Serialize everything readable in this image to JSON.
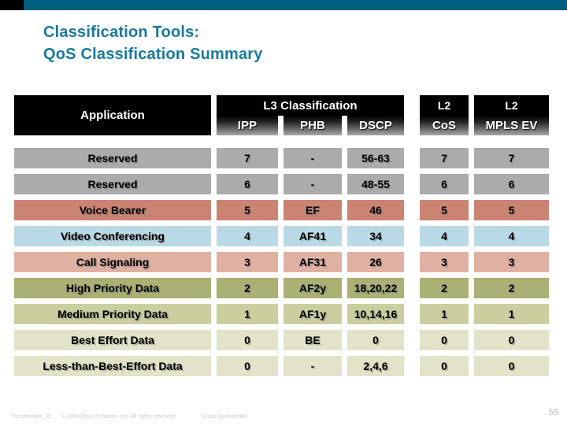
{
  "page": {
    "title_line1": "Classification Tools:",
    "title_line2": "QoS Classification Summary"
  },
  "colors": {
    "top_bar_teal": "#005f80",
    "top_bar_black_accent": "#000000",
    "title_teal": "#1878a0",
    "header_black": "#000000",
    "header_gradient_end": "#a8a8a8",
    "row_gray": "#ababab",
    "row_salmon": "#cb8472",
    "row_blue": "#bad9e6",
    "row_pink": "#e0b1a2",
    "row_olive": "#abb074",
    "row_light_olive": "#cbcf9f",
    "row_cream": "#e2e3c8"
  },
  "table": {
    "header": {
      "application": "Application",
      "l3_group": "L3 Classification",
      "l2_cos_top": "L2",
      "l2_mpls_top": "L2",
      "subcols": [
        "IPP",
        "PHB",
        "DSCP",
        "CoS",
        "MPLS EV"
      ]
    },
    "rows": [
      {
        "application": "Reserved",
        "ipp": "7",
        "phb": "-",
        "dscp": "56-63",
        "cos": "7",
        "mpls_ev": "7",
        "row_color": "#ababab"
      },
      {
        "application": "Reserved",
        "ipp": "6",
        "phb": "-",
        "dscp": "48-55",
        "cos": "6",
        "mpls_ev": "6",
        "row_color": "#ababab"
      },
      {
        "application": "Voice Bearer",
        "ipp": "5",
        "phb": "EF",
        "dscp": "46",
        "cos": "5",
        "mpls_ev": "5",
        "row_color": "#cb8472"
      },
      {
        "application": "Video Conferencing",
        "ipp": "4",
        "phb": "AF41",
        "dscp": "34",
        "cos": "4",
        "mpls_ev": "4",
        "row_color": "#bad9e6"
      },
      {
        "application": "Call Signaling",
        "ipp": "3",
        "phb": "AF31",
        "dscp": "26",
        "cos": "3",
        "mpls_ev": "3",
        "row_color": "#e0b1a2"
      },
      {
        "application": "High Priority Data",
        "ipp": "2",
        "phb": "AF2y",
        "dscp": "18,20,22",
        "cos": "2",
        "mpls_ev": "2",
        "row_color": "#abb074"
      },
      {
        "application": "Medium Priority Data",
        "ipp": "1",
        "phb": "AF1y",
        "dscp": "10,14,16",
        "cos": "1",
        "mpls_ev": "1",
        "row_color": "#cbcf9f"
      },
      {
        "application": "Best Effort Data",
        "ipp": "0",
        "phb": "BE",
        "dscp": "0",
        "cos": "0",
        "mpls_ev": "0",
        "row_color": "#e2e3c8"
      },
      {
        "application": "Less-than-Best-Effort Data",
        "ipp": "0",
        "phb": "-",
        "dscp": "2,4,6",
        "cos": "0",
        "mpls_ev": "0",
        "row_color": "#e2e3c8"
      }
    ]
  },
  "footer": {
    "presentation_id": "Presentation_ID",
    "copyright": "© 2006 Cisco Systems, Inc. All rights reserved.",
    "confidential": "Cisco Confidential",
    "page_number": "55"
  }
}
